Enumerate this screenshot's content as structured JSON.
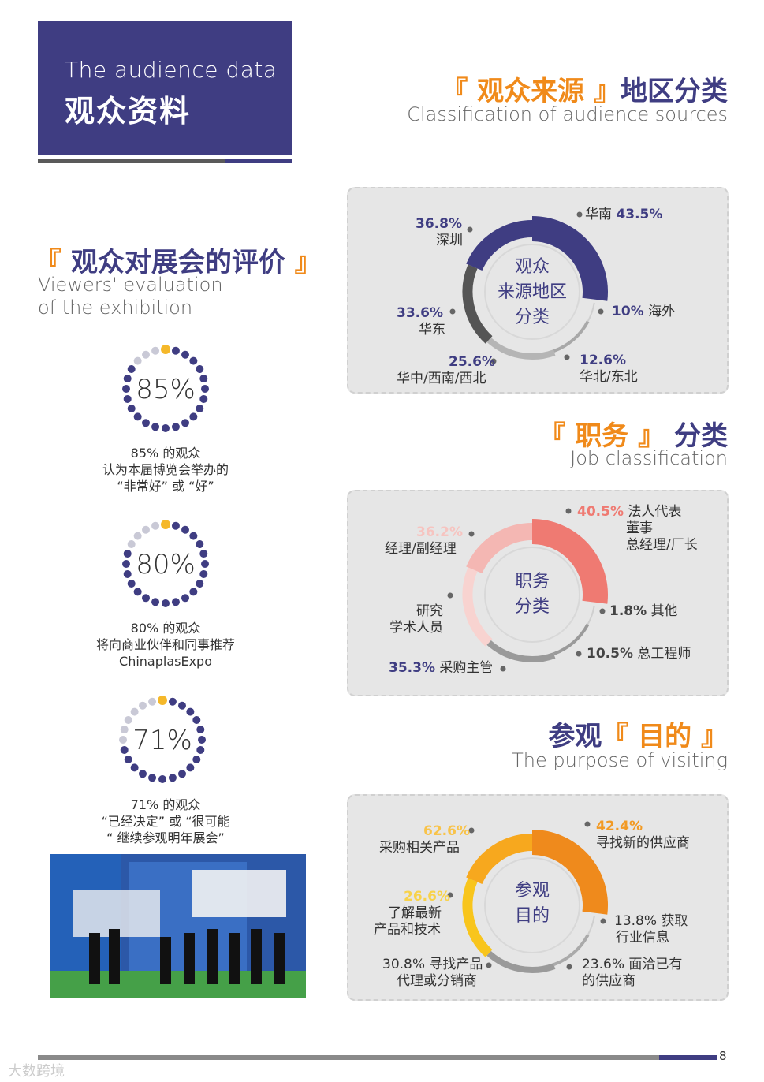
{
  "header": {
    "en_title": "The audience data",
    "cn_title": "观众资料"
  },
  "evaluation": {
    "cn_title_open": "『 ",
    "cn_title_main": "观众对展会的评价",
    "cn_title_close": " 』",
    "en_line1": "Viewers' evaluation",
    "en_line2": "of the exhibition",
    "items": [
      {
        "value": "85%",
        "cap1": "85% 的观众",
        "cap2": "认为本届博览会举办的",
        "cap3": "“非常好” 或 “好”"
      },
      {
        "value": "80%",
        "cap1": "80% 的观众",
        "cap2": "将向商业伙伴和同事推荐",
        "cap3": "ChinaplasExpo"
      },
      {
        "value": "71%",
        "cap1": "71% 的观众",
        "cap2": "“已经决定” 或 “很可能",
        "cap3": "“ 继续参观明年展会”"
      }
    ]
  },
  "source": {
    "cn_open": "『 ",
    "cn_main": "观众来源",
    "cn_close": " 』",
    "cn_tail": "地区分类",
    "en": "Classification of audience sources",
    "center1": "观众",
    "center2": "来源地区",
    "center3": "分类",
    "labels": {
      "huanan_name": "华南",
      "huanan_val": "43.5%",
      "shenzhen_val": "36.8%",
      "shenzhen_name": "深圳",
      "haiwai_val": "10%",
      "haiwai_name": "海外",
      "huadong_val": "33.6%",
      "huadong_name": "华东",
      "huabei_val": "12.6%",
      "huabei_name": "华北/东北",
      "huazhong_val": "25.6%",
      "huazhong_name": "华中/西南/西北"
    }
  },
  "job": {
    "cn_open": "『 ",
    "cn_main": "职务",
    "cn_close": " 』",
    "cn_tail": "分类",
    "en": "Job classification",
    "center1": "职务",
    "center2": "分类",
    "labels": {
      "legal_val": "40.5%",
      "legal_name1": "法人代表",
      "legal_name2": "董事",
      "legal_name3": "总经理/厂长",
      "manager_val": "36.2%",
      "manager_name": "经理/副经理",
      "research_name1": "研究",
      "research_name2": "学术人员",
      "other_val": "1.8%",
      "other_name": "其他",
      "engineer_val": "10.5%",
      "engineer_name": "总工程师",
      "purchase_val": "35.3%",
      "purchase_name": "采购主管"
    }
  },
  "purpose": {
    "cn_head": "参观",
    "cn_open": "『 ",
    "cn_main": "目的",
    "cn_close": " 』",
    "en": "The purpose of visiting",
    "center1": "参观",
    "center2": "目的",
    "labels": {
      "newsup_val": "42.4%",
      "newsup_name": "寻找新的供应商",
      "buy_val": "62.6%",
      "buy_name": "采购相关产品",
      "learn_val": "26.6%",
      "learn_name1": "了解最新",
      "learn_name2": "产品和技术",
      "info_line1": "13.8% 获取",
      "info_line2": "行业信息",
      "agent_line1": "30.8% 寻找产品",
      "agent_line2": "代理或分销商",
      "meet_line1": "23.6% 面洽已有",
      "meet_line2": "的供应商"
    }
  },
  "footer": {
    "page": "8",
    "watermark": "大数跨境"
  },
  "chart_data": [
    {
      "type": "pie",
      "title": "观众来源地区分类",
      "categories": [
        "华南",
        "深圳",
        "华东",
        "华中/西南/西北",
        "华北/东北",
        "海外"
      ],
      "values": [
        43.5,
        36.8,
        33.6,
        25.6,
        12.6,
        10
      ]
    },
    {
      "type": "pie",
      "title": "职务分类",
      "categories": [
        "法人代表 董事 总经理/厂长",
        "经理/副经理",
        "研究 学术人员",
        "采购主管",
        "总工程师",
        "其他"
      ],
      "values": [
        40.5,
        36.2,
        null,
        35.3,
        10.5,
        1.8
      ]
    },
    {
      "type": "pie",
      "title": "参观目的",
      "categories": [
        "寻找新的供应商",
        "采购相关产品",
        "了解最新 产品和技术",
        "寻找产品 代理或分销商",
        "面洽已有 的供应商",
        "获取 行业信息"
      ],
      "values": [
        42.4,
        62.6,
        26.6,
        30.8,
        23.6,
        13.8
      ]
    },
    {
      "type": "bar",
      "title": "",
      "categories": [
        "85%",
        "80%",
        "71%"
      ],
      "values": [
        85,
        80,
        71
      ]
    }
  ],
  "colors": {
    "navy": "#3f3d82",
    "orange": "#f08a1a",
    "gray_dark": "#555555",
    "gray_light": "#b5b5b5",
    "salmon": "#ef7a72",
    "pink": "#f4b7b3",
    "pink_light": "#f8d3d0",
    "orange_deep": "#ef8a1c",
    "amber": "#f7a81e",
    "yellow": "#f8c51c"
  }
}
